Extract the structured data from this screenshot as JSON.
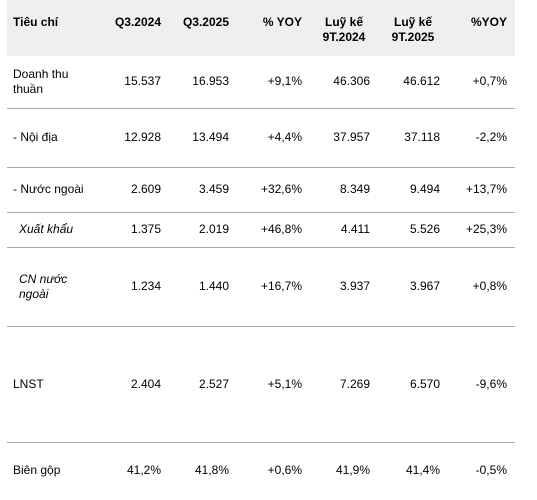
{
  "table": {
    "headers": [
      {
        "line1": "Tiêu chí",
        "line2": ""
      },
      {
        "line1": "Q3.2024",
        "line2": ""
      },
      {
        "line1": "Q3.2025",
        "line2": ""
      },
      {
        "line1": "% YOY",
        "line2": ""
      },
      {
        "line1": "Luỹ kế",
        "line2": "9T.2024"
      },
      {
        "line1": "Luỹ kế",
        "line2": "9T.2025"
      },
      {
        "line1": "%YOY",
        "line2": ""
      }
    ],
    "rows": [
      {
        "label1": "Doanh thu",
        "label2": "thuần",
        "cells": [
          "15.537",
          "16.953",
          "+9,1%",
          "46.306",
          "46.612",
          "+0,7%"
        ]
      },
      {
        "label1": "- Nội địa",
        "label2": "",
        "cells": [
          "12.928",
          "13.494",
          "+4,4%",
          "37.957",
          "37.118",
          "-2,2%"
        ]
      },
      {
        "label1": "- Nước ngoài",
        "label2": "",
        "cells": [
          "2.609",
          "3.459",
          "+32,6%",
          "8.349",
          "9.494",
          "+13,7%"
        ]
      },
      {
        "label1": "Xuất khẩu",
        "label2": "",
        "cells": [
          "1.375",
          "2.019",
          "+46,8%",
          "4.411",
          "5.526",
          "+25,3%"
        ]
      },
      {
        "label1": "CN nước",
        "label2": "ngoài",
        "cells": [
          "1.234",
          "1.440",
          "+16,7%",
          "3.937",
          "3.967",
          "+0,8%"
        ]
      },
      {
        "label1": "LNST",
        "label2": "",
        "cells": [
          "2.404",
          "2.527",
          "+5,1%",
          "7.269",
          "6.570",
          "-9,6%"
        ]
      },
      {
        "label1": "Biên gộp",
        "label2": "",
        "cells": [
          "41,2%",
          "41,8%",
          "+0,6%",
          "41,9%",
          "41,4%",
          "-0,5%"
        ]
      }
    ]
  }
}
